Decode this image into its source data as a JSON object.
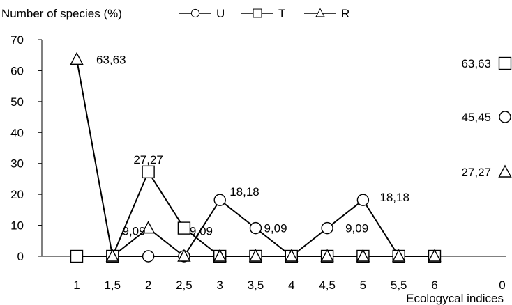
{
  "chart_data": {
    "type": "line",
    "ylabel": "Number of species (%)",
    "xlabel": "Ecologycal indices",
    "ylim": [
      0,
      70
    ],
    "yticks": [
      "0",
      "10",
      "20",
      "30",
      "40",
      "50",
      "60",
      "70"
    ],
    "categories": [
      "1",
      "1,5",
      "2",
      "2,5",
      "3",
      "3,5",
      "4",
      "4,5",
      "5",
      "5,5",
      "6",
      "0"
    ],
    "grid": false,
    "legend_position": "top",
    "series": [
      {
        "name": "U",
        "marker": "circle",
        "values": [
          null,
          0,
          0,
          0,
          18.18,
          9.09,
          0,
          9.09,
          18.18,
          0,
          0,
          45.45
        ]
      },
      {
        "name": "T",
        "marker": "square",
        "values": [
          0,
          0,
          27.27,
          9.09,
          0,
          0,
          0,
          0,
          0,
          0,
          0,
          63.63
        ]
      },
      {
        "name": "R",
        "marker": "triangle",
        "values": [
          63.63,
          0,
          9.09,
          0,
          0,
          0,
          0,
          0,
          0,
          0,
          0,
          27.27
        ]
      }
    ],
    "point_labels": [
      {
        "text": "63,63",
        "series": "R",
        "index": 0
      },
      {
        "text": "27,27",
        "series": "T",
        "index": 2
      },
      {
        "text": "9,09",
        "series": "R",
        "index": 2
      },
      {
        "text": "9,09",
        "series": "T",
        "index": 3
      },
      {
        "text": "18,18",
        "series": "U",
        "index": 4
      },
      {
        "text": "9,09",
        "series": "U",
        "index": 5
      },
      {
        "text": "9,09",
        "series": "U",
        "index": 7
      },
      {
        "text": "18,18",
        "series": "U",
        "index": 8
      }
    ],
    "right_annotations": [
      {
        "text": "63,63",
        "series": "T"
      },
      {
        "text": "45,45",
        "series": "U"
      },
      {
        "text": "27,27",
        "series": "R"
      }
    ]
  }
}
